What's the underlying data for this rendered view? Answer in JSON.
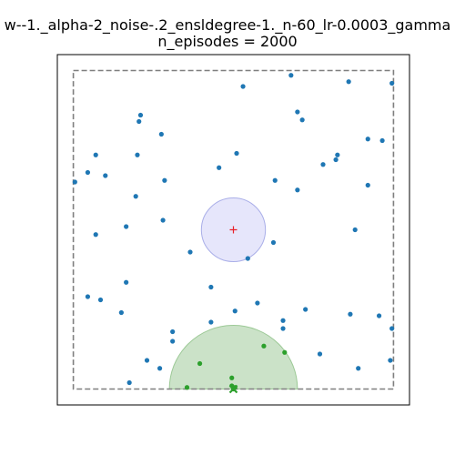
{
  "chart_data": {
    "type": "scatter",
    "title_line1": "w--1._alpha-2_noise-.2_ensldegree-1._n-60_lr-0.0003_gamma",
    "title_line2": "n_episodes = 2000",
    "xlabel": "",
    "ylabel": "",
    "xlim": [
      -1.1,
      1.1
    ],
    "ylim": [
      -1.1,
      1.1
    ],
    "grid": false,
    "boundary": {
      "x": [
        -1,
        1
      ],
      "y": [
        -1,
        1
      ],
      "style": "dashed",
      "color": "#7f7f7f"
    },
    "goal_region": {
      "center": [
        0,
        0
      ],
      "radius": 0.2,
      "color": "#e6e6fb",
      "edge": "#a9aee8"
    },
    "goal_marker": {
      "x": 0,
      "y": 0,
      "symbol": "+",
      "color": "#e8202a"
    },
    "start_region": {
      "center": [
        0,
        -1
      ],
      "radius": 0.4,
      "color": "#cbe2c8",
      "edge": "#9cc996"
    },
    "start_marker": {
      "x": 0,
      "y": -1,
      "symbol": "x",
      "color": "#2ca02c"
    },
    "series": [
      {
        "color": "#1f77b4",
        "points": [
          [
            0.36,
            0.97
          ],
          [
            0.72,
            0.93
          ],
          [
            0.99,
            0.92
          ],
          [
            0.06,
            0.9
          ],
          [
            -0.58,
            0.72
          ],
          [
            0.4,
            0.74
          ],
          [
            -0.59,
            0.68
          ],
          [
            0.43,
            0.69
          ],
          [
            -0.45,
            0.6
          ],
          [
            0.93,
            0.56
          ],
          [
            0.84,
            0.57
          ],
          [
            -0.86,
            0.47
          ],
          [
            -0.6,
            0.47
          ],
          [
            0.64,
            0.44
          ],
          [
            0.65,
            0.47
          ],
          [
            0.56,
            0.41
          ],
          [
            -0.09,
            0.39
          ],
          [
            0.02,
            0.48
          ],
          [
            -0.91,
            0.36
          ],
          [
            -0.8,
            0.34
          ],
          [
            -0.43,
            0.31
          ],
          [
            0.26,
            0.31
          ],
          [
            0.84,
            0.28
          ],
          [
            -0.99,
            0.3
          ],
          [
            0.4,
            0.25
          ],
          [
            -0.61,
            0.21
          ],
          [
            -0.44,
            0.06
          ],
          [
            -0.67,
            0.02
          ],
          [
            -0.86,
            -0.03
          ],
          [
            0.76,
            0.0
          ],
          [
            0.25,
            -0.08
          ],
          [
            -0.27,
            -0.14
          ],
          [
            0.09,
            -0.18
          ],
          [
            -0.67,
            -0.33
          ],
          [
            -0.14,
            -0.36
          ],
          [
            -0.91,
            -0.42
          ],
          [
            -0.83,
            -0.44
          ],
          [
            0.15,
            -0.46
          ],
          [
            0.45,
            -0.5
          ],
          [
            0.01,
            -0.51
          ],
          [
            -0.7,
            -0.52
          ],
          [
            0.73,
            -0.53
          ],
          [
            0.91,
            -0.54
          ],
          [
            0.31,
            -0.57
          ],
          [
            -0.14,
            -0.58
          ],
          [
            0.31,
            -0.62
          ],
          [
            -0.38,
            -0.64
          ],
          [
            0.99,
            -0.62
          ],
          [
            -0.38,
            -0.7
          ],
          [
            0.54,
            -0.78
          ],
          [
            -0.54,
            -0.82
          ],
          [
            0.98,
            -0.82
          ],
          [
            -0.46,
            -0.87
          ],
          [
            0.78,
            -0.87
          ],
          [
            -0.65,
            -0.96
          ]
        ]
      },
      {
        "color": "#2ca02c",
        "points": [
          [
            0.19,
            -0.73
          ],
          [
            0.32,
            -0.77
          ],
          [
            -0.21,
            -0.84
          ],
          [
            -0.01,
            -0.93
          ],
          [
            -0.29,
            -0.99
          ],
          [
            0.01,
            -0.99
          ],
          [
            -0.01,
            -0.98
          ],
          [
            0.0,
            -1.0
          ]
        ]
      }
    ]
  }
}
